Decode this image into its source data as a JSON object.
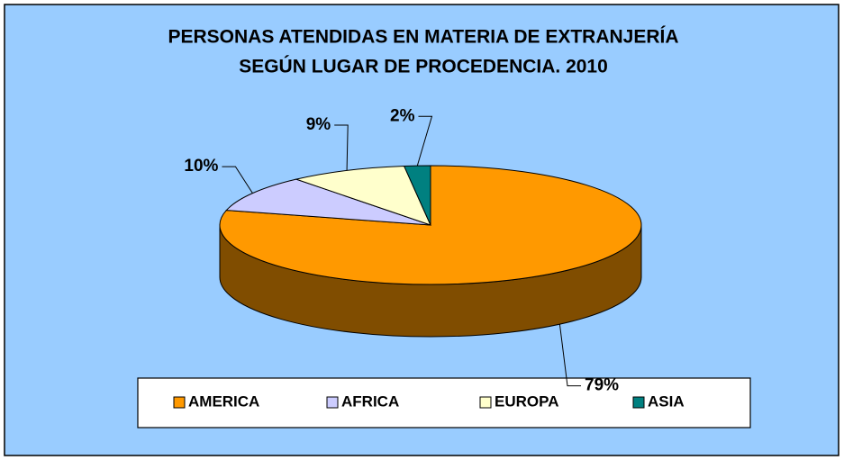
{
  "chart_data": {
    "type": "pie3d",
    "title": [
      "PERSONAS ATENDIDAS EN MATERIA DE EXTRANJERÍA",
      "SEGÚN LUGAR DE PROCEDENCIA. 2010"
    ],
    "series": [
      {
        "name": "AMERICA",
        "color": "#FF9900",
        "values": [
          79
        ],
        "value_labels": [
          "79%"
        ]
      },
      {
        "name": "AFRICA",
        "color": "#CCCCFF",
        "values": [
          10
        ],
        "value_labels": [
          "10%"
        ]
      },
      {
        "name": "EUROPA",
        "color": "#FFFFCC",
        "values": [
          9
        ],
        "value_labels": [
          "9%"
        ]
      },
      {
        "name": "ASIA",
        "color": "#008080",
        "values": [
          2
        ],
        "value_labels": [
          "2%"
        ]
      }
    ],
    "legend": "bottom"
  }
}
